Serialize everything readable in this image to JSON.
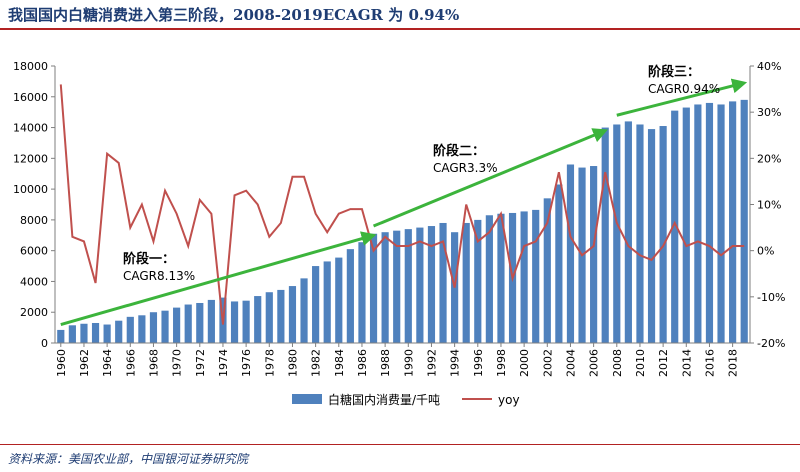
{
  "header": {
    "title": "我国国内白糖消费进入第三阶段，2008-2019ECAGR 为 0.94%"
  },
  "footer": {
    "source": "资料来源：美国农业部，中国银河证券研究院"
  },
  "colors": {
    "bar": "#4f81bd",
    "line": "#c0504d",
    "trend": "#3cb43c",
    "title": "#1f3d73",
    "rule": "#b22222"
  },
  "chart_data": {
    "type": "bar",
    "title": "",
    "x": [
      1960,
      1961,
      1962,
      1963,
      1964,
      1965,
      1966,
      1967,
      1968,
      1969,
      1970,
      1971,
      1972,
      1973,
      1974,
      1975,
      1976,
      1977,
      1978,
      1979,
      1980,
      1981,
      1982,
      1983,
      1984,
      1985,
      1986,
      1987,
      1988,
      1989,
      1990,
      1991,
      1992,
      1993,
      1994,
      1995,
      1996,
      1997,
      1998,
      1999,
      2000,
      2001,
      2002,
      2003,
      2004,
      2005,
      2006,
      2007,
      2008,
      2009,
      2010,
      2011,
      2012,
      2013,
      2014,
      2015,
      2016,
      2017,
      2018,
      2019
    ],
    "x_tick_labels": [
      "1960",
      "1962",
      "1964",
      "1966",
      "1968",
      "1970",
      "1972",
      "1974",
      "1976",
      "1978",
      "1980",
      "1982",
      "1984",
      "1986",
      "1988",
      "1990",
      "1992",
      "1994",
      "1996",
      "1998",
      "2000",
      "2002",
      "2004",
      "2006",
      "2008",
      "2010",
      "2012",
      "2014",
      "2016",
      "2018"
    ],
    "y_left": {
      "min": 0,
      "max": 18000,
      "ticks": [
        0,
        2000,
        4000,
        6000,
        8000,
        10000,
        12000,
        14000,
        16000,
        18000
      ]
    },
    "y_right": {
      "min": -0.2,
      "max": 0.4,
      "ticks": [
        "-20%",
        "-10%",
        "0%",
        "10%",
        "20%",
        "30%",
        "40%"
      ]
    },
    "grid": false,
    "legend_position": "bottom",
    "series": [
      {
        "name": "白糖国内消费量/千吨",
        "type": "bar",
        "axis": "left",
        "values": [
          850,
          1150,
          1250,
          1300,
          1200,
          1450,
          1700,
          1800,
          2000,
          2100,
          2300,
          2500,
          2600,
          2800,
          2950,
          2700,
          2750,
          3050,
          3300,
          3450,
          3700,
          4200,
          5000,
          5300,
          5550,
          6100,
          6550,
          7100,
          7200,
          7300,
          7400,
          7500,
          7600,
          7800,
          7200,
          7800,
          8000,
          8300,
          8400,
          8450,
          8550,
          8650,
          9400,
          10300,
          11600,
          11400,
          11500,
          14000,
          14200,
          14400,
          14200,
          13900,
          14100,
          15100,
          15300,
          15500,
          15600,
          15500,
          15700,
          15800
        ]
      },
      {
        "name": "yoy",
        "type": "line",
        "axis": "right",
        "values": [
          0.36,
          0.03,
          0.02,
          -0.07,
          0.21,
          0.19,
          0.05,
          0.1,
          0.02,
          0.13,
          0.08,
          0.01,
          0.11,
          0.08,
          -0.16,
          0.12,
          0.13,
          0.1,
          0.03,
          0.06,
          0.16,
          0.16,
          0.08,
          0.04,
          0.08,
          0.09,
          0.09,
          0.0,
          0.03,
          0.01,
          0.01,
          0.02,
          0.01,
          0.02,
          -0.08,
          0.1,
          0.02,
          0.04,
          0.08,
          -0.06,
          0.01,
          0.02,
          0.06,
          0.17,
          0.03,
          -0.01,
          0.01,
          0.17,
          0.06,
          0.01,
          -0.01,
          -0.02,
          0.01,
          0.06,
          0.01,
          0.02,
          0.01,
          -0.01,
          0.01,
          0.01
        ]
      }
    ],
    "annotations": [
      {
        "stage": "阶段一：",
        "cagr": "CAGR8.13%"
      },
      {
        "stage": "阶段二：",
        "cagr": "CAGR3.3%"
      },
      {
        "stage": "阶段三：",
        "cagr": "CAGR0.94%"
      }
    ],
    "trend_arrows": [
      {
        "from": [
          1960,
          1200
        ],
        "to": [
          1987,
          7000
        ]
      },
      {
        "from": [
          1987,
          7600
        ],
        "to": [
          2007,
          13800
        ]
      },
      {
        "from": [
          2008,
          14800
        ],
        "to": [
          2019,
          16900
        ]
      }
    ]
  }
}
